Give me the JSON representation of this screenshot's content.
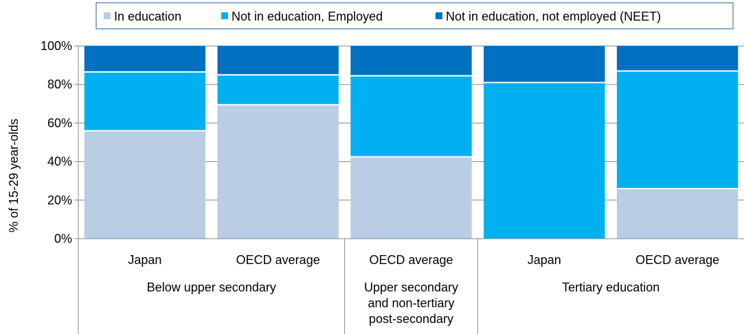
{
  "chart_data": {
    "type": "bar",
    "stacked": true,
    "percent": true,
    "ylabel": "% of 15-29 year-olds",
    "ylim": [
      0,
      100
    ],
    "yticks": [
      "0%",
      "20%",
      "40%",
      "60%",
      "80%",
      "100%"
    ],
    "grid": true,
    "legend_position": "top",
    "categories": [
      "Japan",
      "OECD average",
      "OECD average",
      "Japan",
      "OECD average"
    ],
    "groups": [
      {
        "label": [
          "Below upper secondary"
        ],
        "count": 2
      },
      {
        "label": [
          "Upper secondary",
          "and non-tertiary",
          "post-secondary"
        ],
        "count": 1
      },
      {
        "label": [
          "Tertiary education"
        ],
        "count": 2
      }
    ],
    "series": [
      {
        "name": "In education",
        "color": "#b9cde5",
        "values": [
          56,
          69.5,
          42.5,
          0,
          26
        ]
      },
      {
        "name": "Not in education, Employed",
        "color": "#00b0f0",
        "values": [
          30.5,
          15.5,
          42,
          81,
          61
        ]
      },
      {
        "name": "Not in education, not employed (NEET)",
        "color": "#0070c0",
        "values": [
          13.5,
          15,
          15.5,
          19,
          13
        ]
      }
    ]
  }
}
